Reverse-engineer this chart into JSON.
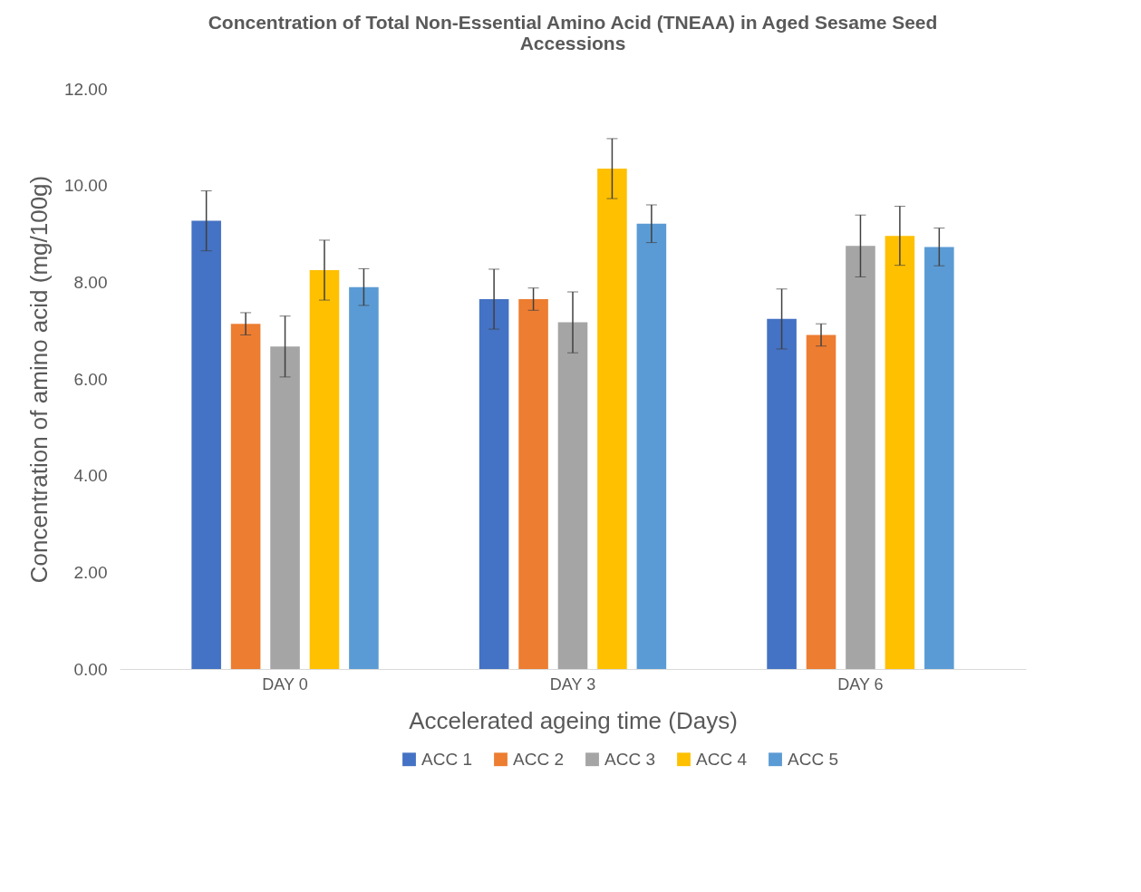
{
  "chart_data": {
    "type": "bar",
    "title": [
      "Concentration of Total Non-Essential Amino Acid (TNEAA) in Aged Sesame Seed",
      "Accessions"
    ],
    "xlabel": "Accelerated ageing time (Days)",
    "ylabel": "Concentration of amino acid (mg/100g)",
    "categories": [
      "DAY 0",
      "DAY 3",
      "DAY 6"
    ],
    "series": [
      {
        "name": "ACC 1",
        "color": "#4472c4",
        "values": [
          9.27,
          7.65,
          7.24
        ],
        "errors": [
          0.62,
          0.62,
          0.62
        ]
      },
      {
        "name": "ACC 2",
        "color": "#ed7d31",
        "values": [
          7.14,
          7.65,
          6.91
        ],
        "errors": [
          0.23,
          0.23,
          0.23
        ]
      },
      {
        "name": "ACC 3",
        "color": "#a5a5a5",
        "values": [
          6.67,
          7.17,
          8.75
        ],
        "errors": [
          0.63,
          0.63,
          0.64
        ]
      },
      {
        "name": "ACC 4",
        "color": "#ffc000",
        "values": [
          8.25,
          10.35,
          8.96
        ],
        "errors": [
          0.62,
          0.62,
          0.61
        ]
      },
      {
        "name": "ACC 5",
        "color": "#5b9bd5",
        "values": [
          7.9,
          9.21,
          8.73
        ],
        "errors": [
          0.38,
          0.39,
          0.39
        ]
      }
    ],
    "ylim": [
      0,
      12
    ],
    "yticks": [
      {
        "value": 0,
        "label": "0.00"
      },
      {
        "value": 2,
        "label": "2.00"
      },
      {
        "value": 4,
        "label": "4.00"
      },
      {
        "value": 6,
        "label": "6.00"
      },
      {
        "value": 8,
        "label": "8.00"
      },
      {
        "value": 10,
        "label": "10.00"
      },
      {
        "value": 12,
        "label": "12.00"
      }
    ],
    "grid": false,
    "legend": "bottom"
  }
}
